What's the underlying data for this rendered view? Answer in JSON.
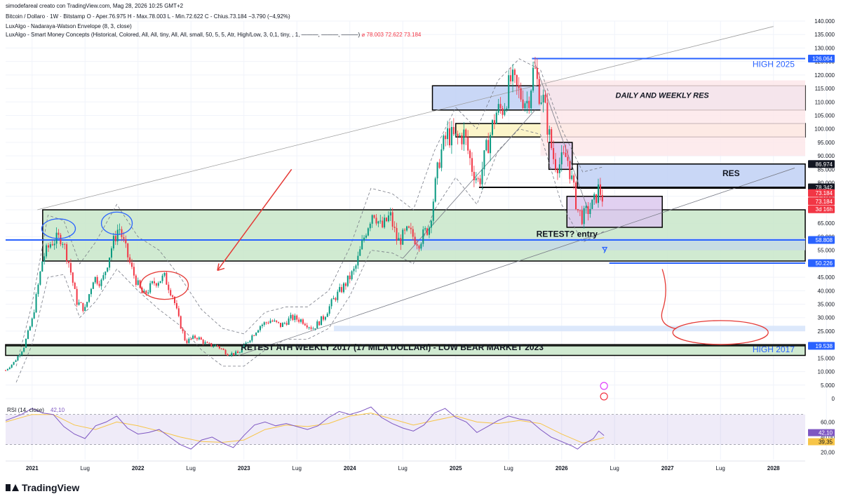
{
  "header": {
    "attribution": "simodefareal creato con TradingView.com, Mag 28, 2026 10:25 GMT+2",
    "symbol_line": "Bitcoin / Dollaro · 1W · Bitstamp  O - Aper.76.975  H - Max.78.003  L - Min.72.622  C - Chius.73.184  −3.790 (−4,92%)",
    "indicator_1": "LuxAlgo - Nadaraya-Watson Envelope (8, 3, close)",
    "indicator_2": "LuxAlgo - Smart Money Concepts (Historical, Colored, All, All, tiny, All, All, small, 50, 5, 5, Atr, High/Low, 3, 0,1, tiny, , 1, ———, ———, ———)",
    "indicator_2_values": "⌀ 78.003  72.622  73.184"
  },
  "chart_data": {
    "type": "candlestick",
    "symbol": "Bitcoin / Dollaro",
    "timeframe": "1W",
    "exchange": "Bitstamp",
    "ohlc_last": {
      "open": 76.975,
      "high": 78.003,
      "low": 72.622,
      "close": 73.184,
      "change": -3.79,
      "change_pct": -4.92
    },
    "y_unit_note": "thousands USD",
    "ylim": [
      0,
      140
    ],
    "y_ticks": [
      0,
      5,
      10,
      15,
      20,
      25,
      30,
      35,
      40,
      45,
      50,
      55,
      60,
      65,
      70,
      75,
      80,
      85,
      90,
      95,
      100,
      105,
      110,
      115,
      120,
      125,
      130,
      135,
      140
    ],
    "y_tick_labels": [
      "0",
      "5.000",
      "10.000",
      "15.000",
      "20.000",
      "25.000",
      "30.000",
      "35.000",
      "40.000",
      "45.000",
      "50.000",
      "55.000",
      "60.000",
      "65.000",
      "70.000",
      "75.000",
      "80.000",
      "85.000",
      "90.000",
      "95.000",
      "100.000",
      "105.000",
      "110.000",
      "115.000",
      "120.000",
      "125.000",
      "130.000",
      "135.000",
      "140.000"
    ],
    "xlim": [
      2020.75,
      2028.3
    ],
    "x_ticks": [
      {
        "x": 2021.0,
        "label": "2021",
        "bold": true
      },
      {
        "x": 2021.5,
        "label": "Lug",
        "bold": false
      },
      {
        "x": 2022.0,
        "label": "2022",
        "bold": true
      },
      {
        "x": 2022.5,
        "label": "Lug",
        "bold": false
      },
      {
        "x": 2023.0,
        "label": "2023",
        "bold": true
      },
      {
        "x": 2023.5,
        "label": "Lug",
        "bold": false
      },
      {
        "x": 2024.0,
        "label": "2024",
        "bold": true
      },
      {
        "x": 2024.5,
        "label": "Lug",
        "bold": false
      },
      {
        "x": 2025.0,
        "label": "2025",
        "bold": true
      },
      {
        "x": 2025.5,
        "label": "Lug",
        "bold": false
      },
      {
        "x": 2026.0,
        "label": "2026",
        "bold": true
      },
      {
        "x": 2026.5,
        "label": "Lug",
        "bold": false
      },
      {
        "x": 2027.0,
        "label": "2027",
        "bold": true
      },
      {
        "x": 2027.5,
        "label": "Lug",
        "bold": false
      },
      {
        "x": 2028.0,
        "label": "2028",
        "bold": true
      },
      {
        "x": 2028.5,
        "label": "Lug",
        "bold": false
      }
    ],
    "price_path": [
      [
        2020.75,
        10.5
      ],
      [
        2020.83,
        13.5
      ],
      [
        2020.92,
        19
      ],
      [
        2021.0,
        29
      ],
      [
        2021.05,
        40
      ],
      [
        2021.1,
        52
      ],
      [
        2021.18,
        58
      ],
      [
        2021.28,
        60
      ],
      [
        2021.35,
        50
      ],
      [
        2021.42,
        36
      ],
      [
        2021.5,
        33
      ],
      [
        2021.58,
        45
      ],
      [
        2021.66,
        43
      ],
      [
        2021.75,
        56
      ],
      [
        2021.82,
        64
      ],
      [
        2021.87,
        57
      ],
      [
        2021.94,
        48
      ],
      [
        2022.0,
        42
      ],
      [
        2022.05,
        38
      ],
      [
        2022.15,
        43
      ],
      [
        2022.25,
        45
      ],
      [
        2022.33,
        38
      ],
      [
        2022.38,
        30
      ],
      [
        2022.45,
        21
      ],
      [
        2022.55,
        23
      ],
      [
        2022.65,
        20
      ],
      [
        2022.75,
        19.5
      ],
      [
        2022.85,
        16.5
      ],
      [
        2022.95,
        16.8
      ],
      [
        2023.05,
        22
      ],
      [
        2023.15,
        27
      ],
      [
        2023.25,
        29
      ],
      [
        2023.35,
        27
      ],
      [
        2023.45,
        30
      ],
      [
        2023.55,
        29
      ],
      [
        2023.65,
        26
      ],
      [
        2023.75,
        30
      ],
      [
        2023.85,
        37
      ],
      [
        2023.95,
        42
      ],
      [
        2024.05,
        48
      ],
      [
        2024.15,
        62
      ],
      [
        2024.22,
        70
      ],
      [
        2024.3,
        63
      ],
      [
        2024.38,
        68
      ],
      [
        2024.45,
        58
      ],
      [
        2024.55,
        62
      ],
      [
        2024.65,
        58
      ],
      [
        2024.75,
        64
      ],
      [
        2024.85,
        90
      ],
      [
        2024.92,
        98
      ],
      [
        2025.0,
        96
      ],
      [
        2025.08,
        98
      ],
      [
        2025.15,
        86
      ],
      [
        2025.22,
        80
      ],
      [
        2025.3,
        94
      ],
      [
        2025.38,
        106
      ],
      [
        2025.45,
        108
      ],
      [
        2025.52,
        118
      ],
      [
        2025.6,
        113
      ],
      [
        2025.68,
        110
      ],
      [
        2025.74,
        123
      ],
      [
        2025.78,
        115
      ],
      [
        2025.83,
        110
      ],
      [
        2025.88,
        98
      ],
      [
        2025.93,
        88
      ],
      [
        2025.98,
        87
      ],
      [
        2026.05,
        90
      ],
      [
        2026.1,
        80
      ],
      [
        2026.15,
        70
      ],
      [
        2026.2,
        67
      ],
      [
        2026.25,
        70
      ],
      [
        2026.3,
        72
      ],
      [
        2026.35,
        78
      ],
      [
        2026.4,
        73.184
      ]
    ],
    "envelope_upper": [
      [
        2020.85,
        12
      ],
      [
        2021.0,
        35
      ],
      [
        2021.15,
        68
      ],
      [
        2021.3,
        66
      ],
      [
        2021.45,
        50
      ],
      [
        2021.6,
        58
      ],
      [
        2021.8,
        72
      ],
      [
        2022.0,
        60
      ],
      [
        2022.2,
        55
      ],
      [
        2022.4,
        45
      ],
      [
        2022.6,
        33
      ],
      [
        2022.8,
        26
      ],
      [
        2023.0,
        24
      ],
      [
        2023.2,
        32
      ],
      [
        2023.4,
        34
      ],
      [
        2023.6,
        34
      ],
      [
        2023.8,
        40
      ],
      [
        2024.0,
        56
      ],
      [
        2024.2,
        78
      ],
      [
        2024.4,
        76
      ],
      [
        2024.6,
        70
      ],
      [
        2024.8,
        92
      ],
      [
        2025.0,
        108
      ],
      [
        2025.2,
        100
      ],
      [
        2025.4,
        118
      ],
      [
        2025.6,
        126
      ],
      [
        2025.8,
        122
      ],
      [
        2026.0,
        100
      ],
      [
        2026.2,
        84
      ],
      [
        2026.4,
        86
      ]
    ],
    "envelope_lower": [
      [
        2020.85,
        6
      ],
      [
        2021.0,
        20
      ],
      [
        2021.15,
        45
      ],
      [
        2021.3,
        46
      ],
      [
        2021.45,
        30
      ],
      [
        2021.6,
        36
      ],
      [
        2021.8,
        48
      ],
      [
        2022.0,
        40
      ],
      [
        2022.2,
        33
      ],
      [
        2022.4,
        27
      ],
      [
        2022.6,
        18
      ],
      [
        2022.8,
        12
      ],
      [
        2023.0,
        12
      ],
      [
        2023.2,
        18
      ],
      [
        2023.4,
        22
      ],
      [
        2023.6,
        22
      ],
      [
        2023.8,
        26
      ],
      [
        2024.0,
        38
      ],
      [
        2024.2,
        55
      ],
      [
        2024.4,
        54
      ],
      [
        2024.6,
        50
      ],
      [
        2024.8,
        70
      ],
      [
        2025.0,
        82
      ],
      [
        2025.2,
        72
      ],
      [
        2025.4,
        92
      ],
      [
        2025.6,
        100
      ],
      [
        2025.8,
        98
      ],
      [
        2026.0,
        72
      ],
      [
        2026.2,
        58
      ],
      [
        2026.4,
        62
      ]
    ],
    "zones": [
      {
        "x0": 2021.1,
        "x1": 2028.3,
        "y0": 51,
        "y1": 70,
        "fill": "#c8e6c9",
        "stroke": "#000000"
      },
      {
        "x0": 2020.75,
        "x1": 2028.3,
        "y0": 16,
        "y1": 20,
        "fill": "#c8e6c9",
        "stroke": "#000000"
      },
      {
        "x0": 2024.78,
        "x1": 2028.3,
        "y0": 107,
        "y1": 116,
        "fill": "#bfd0f5",
        "stroke": "#000000"
      },
      {
        "x0": 2025.0,
        "x1": 2028.3,
        "y0": 97,
        "y1": 102,
        "fill": "#fbf3c0",
        "stroke": "#000000"
      },
      {
        "x0": 2025.8,
        "x1": 2028.3,
        "y0": 90,
        "y1": 118,
        "fill": "#fde7ea",
        "stroke": "none"
      },
      {
        "x0": 2026.15,
        "x1": 2028.3,
        "y0": 78,
        "y1": 87,
        "fill": "#bfd0f5",
        "stroke": "#000000"
      },
      {
        "x0": 2026.05,
        "x1": 2026.95,
        "y0": 63.5,
        "y1": 75,
        "fill": "#dcc8ee",
        "stroke": "#000000"
      },
      {
        "x0": 2025.88,
        "x1": 2026.1,
        "y0": 85,
        "y1": 95,
        "fill": "#dcc8ee",
        "stroke": "#000000"
      },
      {
        "x0": 2023.85,
        "x1": 2028.3,
        "y0": 25,
        "y1": 27,
        "fill": "#d6e4fa",
        "stroke": "none"
      },
      {
        "x0": 2024.6,
        "x1": 2028.3,
        "y0": 55,
        "y1": 59.5,
        "fill": "#c5d9e6",
        "stroke": "none"
      }
    ],
    "horizontal_levels": [
      {
        "label": "126.064",
        "value": 126.064,
        "x0": 2025.72,
        "color": "#2962ff",
        "width": 2
      },
      {
        "label": "86.974",
        "value": 86.974,
        "x0": 2026.1,
        "color": "#000000",
        "width": 1.5
      },
      {
        "label": "78.342",
        "value": 78.342,
        "x0": 2025.22,
        "color": "#000000",
        "width": 2
      },
      {
        "label": "58.808",
        "value": 58.808,
        "x0": 2020.75,
        "color": "#2962ff",
        "width": 2
      },
      {
        "label": "50.226",
        "value": 50.226,
        "x0": 2026.45,
        "color": "#2962ff",
        "width": 2
      },
      {
        "label": "19.538",
        "value": 19.538,
        "x0": 2020.75,
        "color": "#000000",
        "width": 1.5
      }
    ],
    "price_badges": [
      {
        "label": "126.064",
        "value": 126.064,
        "bg": "#2962ff"
      },
      {
        "label": "86.974",
        "value": 86.974,
        "bg": "#131722"
      },
      {
        "label": "78.342",
        "value": 78.342,
        "bg": "#131722"
      },
      {
        "label": "73.184",
        "value": 76.2,
        "bg": "#f23645"
      },
      {
        "label": "73.184",
        "value": 73.184,
        "bg": "#f23645"
      },
      {
        "label": "3d 16h",
        "value": 70.2,
        "bg": "#f23645"
      },
      {
        "label": "58.808",
        "value": 58.808,
        "bg": "#2962ff"
      },
      {
        "label": "50.226",
        "value": 50.226,
        "bg": "#2962ff"
      },
      {
        "label": "19.538",
        "value": 19.538,
        "bg": "#2962ff"
      }
    ],
    "trendlines": [
      {
        "points": [
          [
            2021.05,
            70
          ],
          [
            2028.0,
            138
          ]
        ],
        "color": "#9e9e9e",
        "width": 0.8
      },
      {
        "points": [
          [
            2022.95,
            16
          ],
          [
            2028.2,
            85.5
          ]
        ],
        "color": "#787b86",
        "width": 0.8
      },
      {
        "points": [
          [
            2024.5,
            52
          ],
          [
            2025.75,
            107
          ]
        ],
        "color": "#787b86",
        "width": 0.8
      },
      {
        "points": [
          [
            2025.74,
            125
          ],
          [
            2026.25,
            70
          ]
        ],
        "color": "#787b86",
        "width": 0.8
      }
    ],
    "annotations": [
      {
        "text": "HIGH 2025",
        "x": 2028.2,
        "y": 123,
        "color": "#2962ff",
        "size": 12,
        "bold": false,
        "italic": false,
        "anchor": "end"
      },
      {
        "text": "DAILY AND WEEKLY RES",
        "x": 2026.95,
        "y": 111.5,
        "color": "#131722",
        "size": 11,
        "bold": true,
        "italic": true,
        "anchor": "middle"
      },
      {
        "text": "RES",
        "x": 2027.6,
        "y": 82.5,
        "color": "#131722",
        "size": 12,
        "bold": true,
        "italic": false,
        "anchor": "middle"
      },
      {
        "text": "RETEST? entry",
        "x": 2026.05,
        "y": 60,
        "color": "#131722",
        "size": 12,
        "bold": true,
        "italic": false,
        "anchor": "middle"
      },
      {
        "text": "RETEST ATH WEEKLY 2017 (17 MILA DOLLARI) - LOW BEAR MARKET 2023",
        "x": 2024.4,
        "y": 18,
        "color": "#131722",
        "size": 12,
        "bold": true,
        "italic": false,
        "anchor": "middle"
      },
      {
        "text": "HIGH 2017",
        "x": 2028.2,
        "y": 17.2,
        "color": "#2962ff",
        "size": 12,
        "bold": false,
        "italic": false,
        "anchor": "end"
      }
    ],
    "rsi": {
      "label": "RSI (14, close)",
      "value_label": "42,10",
      "ma_value_label": "39,35",
      "ylim": [
        10,
        80
      ],
      "y_ticks": [
        20,
        40,
        60
      ],
      "y_tick_labels": [
        "20,00",
        "40,00",
        "60,00"
      ],
      "band": [
        30,
        70
      ],
      "values": [
        [
          2020.75,
          62
        ],
        [
          2020.9,
          70
        ],
        [
          2021.0,
          78
        ],
        [
          2021.1,
          72
        ],
        [
          2021.2,
          70
        ],
        [
          2021.3,
          54
        ],
        [
          2021.4,
          44
        ],
        [
          2021.5,
          38
        ],
        [
          2021.6,
          55
        ],
        [
          2021.7,
          60
        ],
        [
          2021.8,
          68
        ],
        [
          2021.9,
          52
        ],
        [
          2022.0,
          44
        ],
        [
          2022.1,
          46
        ],
        [
          2022.2,
          50
        ],
        [
          2022.3,
          40
        ],
        [
          2022.4,
          30
        ],
        [
          2022.5,
          24
        ],
        [
          2022.6,
          36
        ],
        [
          2022.7,
          40
        ],
        [
          2022.8,
          32
        ],
        [
          2022.9,
          26
        ],
        [
          2023.0,
          42
        ],
        [
          2023.1,
          56
        ],
        [
          2023.2,
          60
        ],
        [
          2023.3,
          55
        ],
        [
          2023.4,
          58
        ],
        [
          2023.5,
          54
        ],
        [
          2023.6,
          50
        ],
        [
          2023.7,
          55
        ],
        [
          2023.8,
          66
        ],
        [
          2023.9,
          74
        ],
        [
          2024.0,
          70
        ],
        [
          2024.1,
          74
        ],
        [
          2024.2,
          80
        ],
        [
          2024.3,
          66
        ],
        [
          2024.4,
          58
        ],
        [
          2024.5,
          52
        ],
        [
          2024.6,
          48
        ],
        [
          2024.7,
          56
        ],
        [
          2024.8,
          72
        ],
        [
          2024.9,
          78
        ],
        [
          2025.0,
          66
        ],
        [
          2025.1,
          60
        ],
        [
          2025.2,
          46
        ],
        [
          2025.3,
          54
        ],
        [
          2025.4,
          62
        ],
        [
          2025.5,
          68
        ],
        [
          2025.6,
          64
        ],
        [
          2025.7,
          62
        ],
        [
          2025.8,
          50
        ],
        [
          2025.9,
          40
        ],
        [
          2026.0,
          34
        ],
        [
          2026.1,
          28
        ],
        [
          2026.15,
          24
        ],
        [
          2026.2,
          30
        ],
        [
          2026.3,
          38
        ],
        [
          2026.35,
          48
        ],
        [
          2026.4,
          42.1
        ]
      ],
      "ma": [
        [
          2020.75,
          60
        ],
        [
          2021.0,
          70
        ],
        [
          2021.2,
          70
        ],
        [
          2021.4,
          56
        ],
        [
          2021.6,
          50
        ],
        [
          2021.8,
          60
        ],
        [
          2022.0,
          55
        ],
        [
          2022.2,
          48
        ],
        [
          2022.4,
          40
        ],
        [
          2022.6,
          34
        ],
        [
          2022.8,
          33
        ],
        [
          2023.0,
          36
        ],
        [
          2023.2,
          50
        ],
        [
          2023.4,
          56
        ],
        [
          2023.6,
          54
        ],
        [
          2023.8,
          58
        ],
        [
          2024.0,
          68
        ],
        [
          2024.2,
          72
        ],
        [
          2024.4,
          64
        ],
        [
          2024.6,
          56
        ],
        [
          2024.8,
          62
        ],
        [
          2025.0,
          68
        ],
        [
          2025.2,
          60
        ],
        [
          2025.4,
          58
        ],
        [
          2025.6,
          62
        ],
        [
          2025.8,
          58
        ],
        [
          2026.0,
          44
        ],
        [
          2026.2,
          32
        ],
        [
          2026.4,
          39.35
        ]
      ]
    }
  },
  "footer": {
    "logo_text": "TradingView"
  },
  "colors": {
    "up": "#089981",
    "down": "#f23645",
    "blue": "#2962ff",
    "axis_text": "#131722",
    "grid": "#f0f3fa"
  }
}
